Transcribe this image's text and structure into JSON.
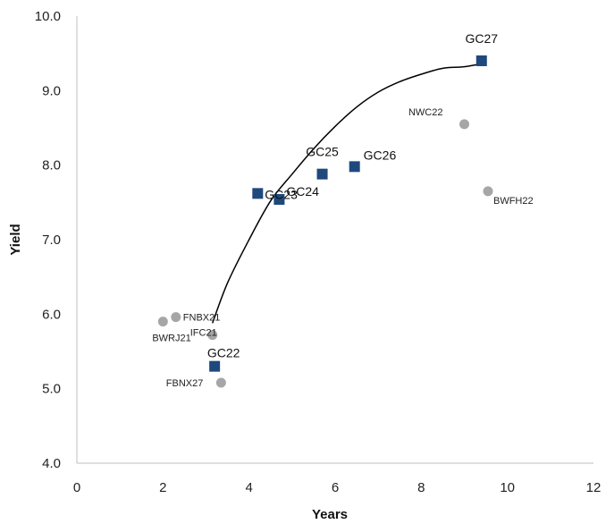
{
  "chart_data": {
    "type": "scatter",
    "xlabel": "Years",
    "ylabel": "Yield",
    "xlim": [
      0,
      12
    ],
    "ylim": [
      4.0,
      10.0
    ],
    "x_ticks": [
      {
        "value": 0,
        "label": "0"
      },
      {
        "value": 2,
        "label": "2"
      },
      {
        "value": 4,
        "label": "4"
      },
      {
        "value": 6,
        "label": "6"
      },
      {
        "value": 8,
        "label": "8"
      },
      {
        "value": 10,
        "label": "10"
      },
      {
        "value": 12,
        "label": "12"
      }
    ],
    "y_ticks": [
      {
        "value": 4,
        "label": "4.0"
      },
      {
        "value": 5,
        "label": "5.0"
      },
      {
        "value": 6,
        "label": "6.0"
      },
      {
        "value": 7,
        "label": "7.0"
      },
      {
        "value": 8,
        "label": "8.0"
      },
      {
        "value": 9,
        "label": "9.0"
      },
      {
        "value": 10,
        "label": "10.0"
      }
    ],
    "grid": false,
    "series": [
      {
        "color": "#1f497d",
        "marker": "square",
        "points": [
          {
            "label": "GC22",
            "x": 3.2,
            "y": 5.3
          },
          {
            "label": "GC23",
            "x": 4.2,
            "y": 7.62
          },
          {
            "label": "GC24",
            "x": 4.7,
            "y": 7.54
          },
          {
            "label": "GC25",
            "x": 5.7,
            "y": 7.88
          },
          {
            "label": "GC26",
            "x": 6.45,
            "y": 7.98
          },
          {
            "label": "GC27",
            "x": 9.4,
            "y": 9.4
          }
        ]
      },
      {
        "color": "#a6a6a6",
        "marker": "circle",
        "points": [
          {
            "label": "BWRJ21",
            "x": 2.0,
            "y": 5.9
          },
          {
            "label": "FNBX21",
            "x": 2.3,
            "y": 5.96
          },
          {
            "label": "IFC21",
            "x": 3.15,
            "y": 5.72
          },
          {
            "label": "FBNX27",
            "x": 3.35,
            "y": 5.08
          },
          {
            "label": "NWC22",
            "x": 9.0,
            "y": 8.55
          },
          {
            "label": "BWFH22",
            "x": 9.55,
            "y": 7.65
          }
        ]
      }
    ],
    "trendline": {
      "type": "polynomial",
      "color": "#000000",
      "x_range": [
        3.15,
        9.4
      ],
      "points": [
        [
          3.15,
          5.88
        ],
        [
          3.5,
          6.42
        ],
        [
          4.0,
          7.0
        ],
        [
          4.5,
          7.52
        ],
        [
          5.0,
          7.88
        ],
        [
          5.5,
          8.22
        ],
        [
          6.0,
          8.52
        ],
        [
          6.5,
          8.78
        ],
        [
          7.0,
          8.98
        ],
        [
          7.5,
          9.12
        ],
        [
          8.0,
          9.22
        ],
        [
          8.5,
          9.3
        ],
        [
          9.0,
          9.32
        ],
        [
          9.4,
          9.36
        ]
      ]
    }
  }
}
